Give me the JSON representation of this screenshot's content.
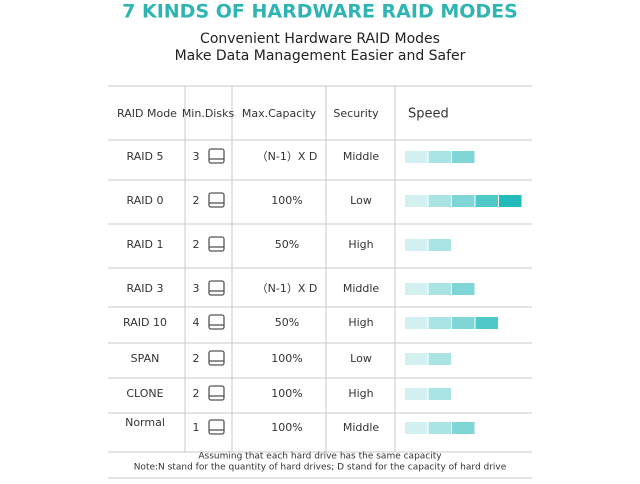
{
  "header": {
    "title": "7 KINDS OF HARDWARE RAID MODES",
    "subtitle": [
      "Convenient Hardware RAID Modes",
      "Make Data Management Easier and Safer"
    ]
  },
  "table": {
    "columns": [
      "RAID Mode",
      "Min.Disks",
      "Max.Capacity",
      "Security",
      "Speed"
    ],
    "rows": [
      {
        "mode": "RAID 5",
        "disks": 3,
        "capacity": "（N-1）X D",
        "security": "Middle",
        "speed": 3
      },
      {
        "mode": "RAID 0",
        "disks": 2,
        "capacity": "100%",
        "security": "Low",
        "speed": 5
      },
      {
        "mode": "RAID 1",
        "disks": 2,
        "capacity": "50%",
        "security": "High",
        "speed": 2
      },
      {
        "mode": "RAID 3",
        "disks": 3,
        "capacity": "（N-1）X D",
        "security": "Middle",
        "speed": 3
      },
      {
        "mode": "RAID 10",
        "disks": 4,
        "capacity": "50%",
        "security": "High",
        "speed": 4
      },
      {
        "mode": "SPAN",
        "disks": 2,
        "capacity": "100%",
        "security": "Low",
        "speed": 2
      },
      {
        "mode": "CLONE",
        "disks": 2,
        "capacity": "100%",
        "security": "High",
        "speed": 2
      },
      {
        "mode": "Normal",
        "disks": 1,
        "capacity": "100%",
        "security": "Middle",
        "speed": 3
      }
    ]
  },
  "notes": [
    "Assuming that each hard drive has the same capacity",
    "Note:N stand for the quantity of hard drives; D stand for the capacity of hard drive"
  ]
}
